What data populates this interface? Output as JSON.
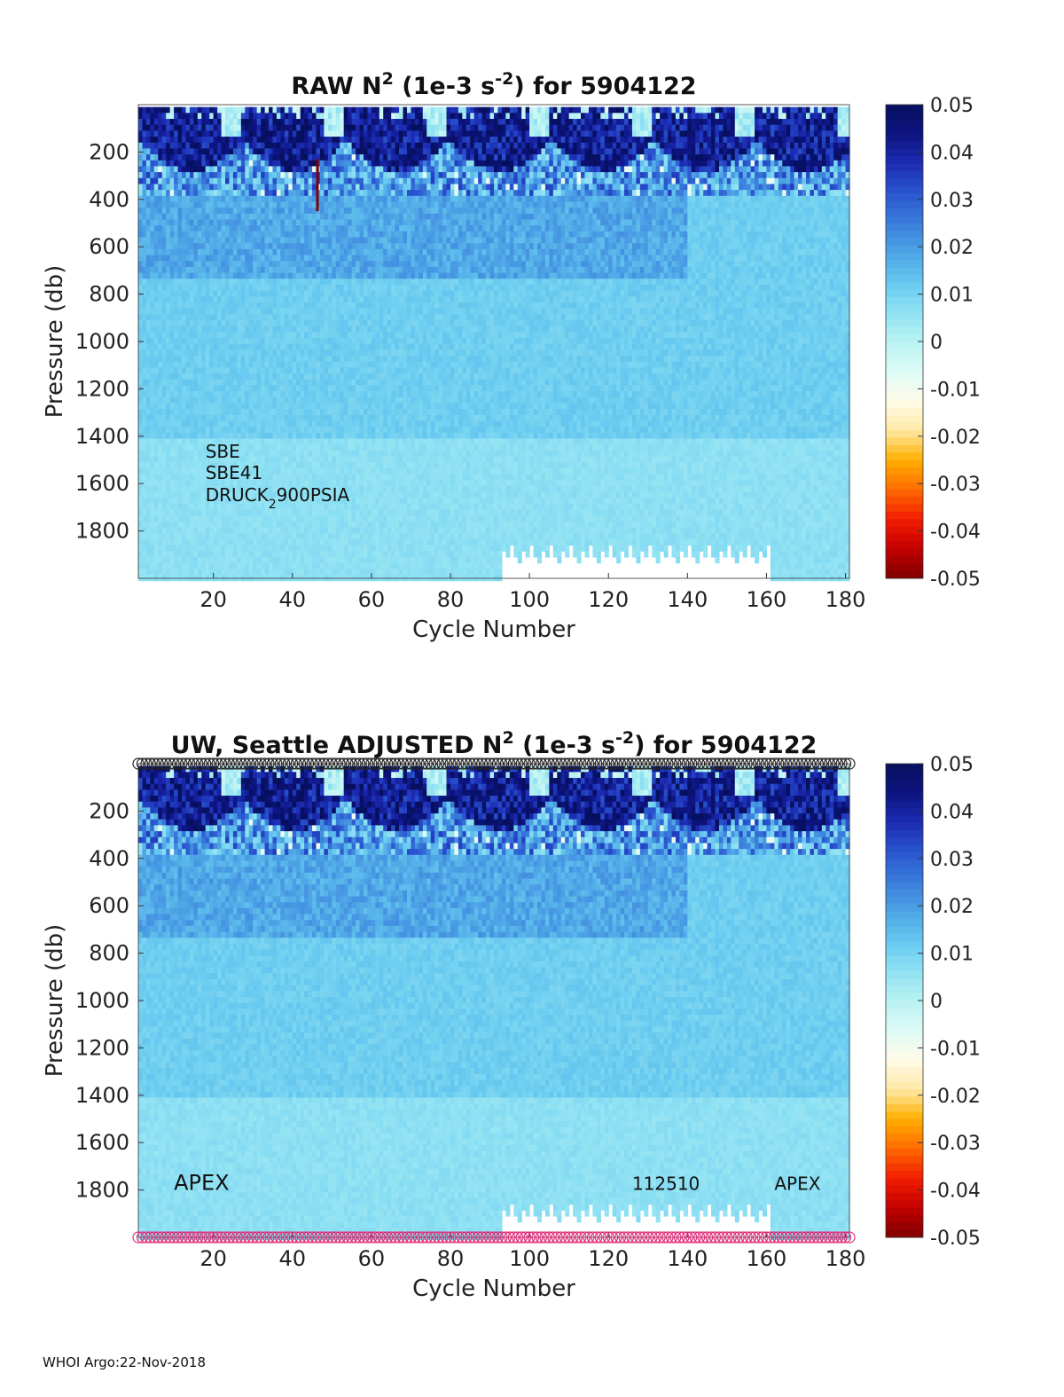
{
  "footer": "WHOI Argo:22-Nov-2018",
  "colormap": [
    "#7f0000",
    "#c40000",
    "#f21d00",
    "#ff6a00",
    "#ffb000",
    "#ffe9a6",
    "#fffbe8",
    "#ddfbf7",
    "#b8f2f2",
    "#8fe1f3",
    "#66c8ef",
    "#4ea4e6",
    "#3a7ddb",
    "#2a56cf",
    "#1c2cb4",
    "#0d1480",
    "#07105e"
  ],
  "chart_data": [
    {
      "type": "heatmap",
      "title_parts": [
        {
          "t": "RAW N",
          "s": 0
        },
        {
          "t": "2",
          "s": 1
        },
        {
          "t": " (1e-3 s",
          "s": 0
        },
        {
          "t": "-2",
          "s": 1
        },
        {
          "t": ") for 5904122",
          "s": 0
        }
      ],
      "xlabel": "Cycle Number",
      "ylabel": "Pressure (db)",
      "xlim": [
        1,
        181
      ],
      "ylim": [
        0,
        2000
      ],
      "xticks": [
        20,
        40,
        60,
        80,
        100,
        120,
        140,
        160,
        180
      ],
      "yticks": [
        200,
        400,
        600,
        800,
        1000,
        1200,
        1400,
        1600,
        1800
      ],
      "color_range": [
        -0.05,
        0.05
      ],
      "colorbar_ticks": [
        {
          "v": 0.05,
          "label": "0.05"
        },
        {
          "v": 0.04,
          "label": "0.04"
        },
        {
          "v": 0.03,
          "label": "0.03"
        },
        {
          "v": 0.02,
          "label": "0.02"
        },
        {
          "v": 0.01,
          "label": "0.01"
        },
        {
          "v": 0,
          "label": "0"
        },
        {
          "v": -0.01,
          "label": "-0.01"
        },
        {
          "v": -0.02,
          "label": "-0.02"
        },
        {
          "v": -0.03,
          "label": "-0.03"
        },
        {
          "v": -0.04,
          "label": "-0.04"
        },
        {
          "v": -0.05,
          "label": "-0.05"
        }
      ],
      "annotations": [
        {
          "parts": [
            {
              "t": "SBE",
              "s": 0
            }
          ],
          "x": 18,
          "y": 1490
        },
        {
          "parts": [
            {
              "t": "SBE41",
              "s": 0
            }
          ],
          "x": 18,
          "y": 1580
        },
        {
          "parts": [
            {
              "t": "DRUCK",
              "s": 0
            },
            {
              "t": "2",
              "s": -1
            },
            {
              "t": "900PSIA",
              "s": 0
            }
          ],
          "x": 18,
          "y": 1675
        }
      ],
      "marker_rows": [],
      "spike": {
        "cycle": 46,
        "p_from": 230,
        "p_to": 450,
        "value": -0.05
      }
    },
    {
      "type": "heatmap",
      "title_parts": [
        {
          "t": "UW, Seattle  ADJUSTED N",
          "s": 0
        },
        {
          "t": "2",
          "s": 1
        },
        {
          "t": " (1e-3 s",
          "s": 0
        },
        {
          "t": "-2",
          "s": 1
        },
        {
          "t": ") for 5904122",
          "s": 0
        }
      ],
      "xlabel": "Cycle Number",
      "ylabel": "Pressure (db)",
      "xlim": [
        1,
        181
      ],
      "ylim": [
        0,
        2000
      ],
      "xticks": [
        20,
        40,
        60,
        80,
        100,
        120,
        140,
        160,
        180
      ],
      "yticks": [
        200,
        400,
        600,
        800,
        1000,
        1200,
        1400,
        1600,
        1800
      ],
      "color_range": [
        -0.05,
        0.05
      ],
      "colorbar_ticks": [
        {
          "v": 0.05,
          "label": "0.05"
        },
        {
          "v": 0.04,
          "label": "0.04"
        },
        {
          "v": 0.03,
          "label": "0.03"
        },
        {
          "v": 0.02,
          "label": "0.02"
        },
        {
          "v": 0.01,
          "label": "0.01"
        },
        {
          "v": 0,
          "label": "0"
        },
        {
          "v": -0.01,
          "label": "-0.01"
        },
        {
          "v": -0.02,
          "label": "-0.02"
        },
        {
          "v": -0.03,
          "label": "-0.03"
        },
        {
          "v": -0.04,
          "label": "-0.04"
        },
        {
          "v": -0.05,
          "label": "-0.05"
        }
      ],
      "annotations": [
        {
          "parts": [
            {
              "t": "APEX",
              "s": 0
            }
          ],
          "x": 10,
          "y": 1800,
          "big": true
        },
        {
          "parts": [
            {
              "t": "112510",
              "s": 0
            }
          ],
          "x": 126,
          "y": 1800
        },
        {
          "parts": [
            {
              "t": "APEX",
              "s": 0
            }
          ],
          "x": 162,
          "y": 1800
        }
      ],
      "marker_rows": [
        {
          "p": 0,
          "color": "#222222"
        },
        {
          "p": 2000,
          "color": "#e0327a"
        }
      ],
      "spike": null
    }
  ]
}
